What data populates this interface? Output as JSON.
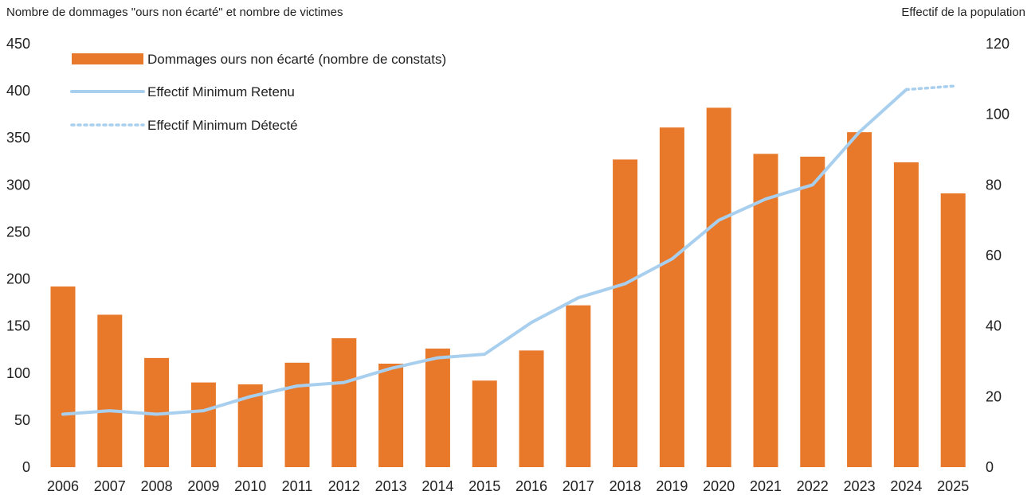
{
  "chart_data": {
    "type": "bar",
    "ylabel": "Nombre de dommages \"ours non écarté\" et nombre de victimes",
    "y2label": "Effectif de la population",
    "categories": [
      "2006",
      "2007",
      "2008",
      "2009",
      "2010",
      "2011",
      "2012",
      "2013",
      "2014",
      "2015",
      "2016",
      "2017",
      "2018",
      "2019",
      "2020",
      "2021",
      "2022",
      "2023",
      "2024",
      "2025"
    ],
    "ylim": [
      0,
      450
    ],
    "yticks": [
      0,
      50,
      100,
      150,
      200,
      250,
      300,
      350,
      400,
      450
    ],
    "y2lim": [
      0,
      120
    ],
    "y2ticks": [
      0,
      20,
      40,
      60,
      80,
      100,
      120
    ],
    "series": [
      {
        "name": "Dommages ours non écarté (nombre de constats)",
        "kind": "bar",
        "axis": "left",
        "color": "#E8782A",
        "values": [
          192,
          162,
          116,
          90,
          88,
          111,
          137,
          110,
          126,
          92,
          124,
          172,
          327,
          361,
          382,
          333,
          330,
          356,
          324,
          291
        ]
      },
      {
        "name": "Effectif Minimum Retenu",
        "kind": "line",
        "axis": "right",
        "color": "#A9CFEF",
        "style": "solid",
        "x": [
          "2006",
          "2007",
          "2008",
          "2009",
          "2010",
          "2011",
          "2012",
          "2013",
          "2014",
          "2015",
          "2016",
          "2017",
          "2018",
          "2019",
          "2020",
          "2021",
          "2022",
          "2023",
          "2024"
        ],
        "values": [
          15,
          16,
          15,
          16,
          20,
          23,
          24,
          28,
          31,
          32,
          41,
          48,
          52,
          59,
          70,
          76,
          80,
          95,
          107
        ]
      },
      {
        "name": "Effectif Minimum Détecté",
        "kind": "line",
        "axis": "right",
        "color": "#A9CFEF",
        "style": "dotted",
        "x": [
          "2024",
          "2025"
        ],
        "values": [
          107,
          108
        ]
      }
    ],
    "legend": "top-left",
    "grid": false
  }
}
